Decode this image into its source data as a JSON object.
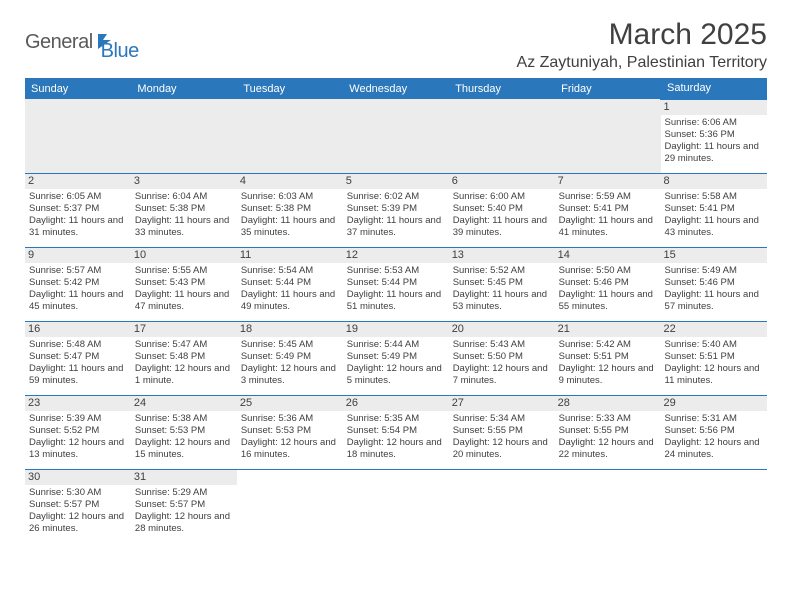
{
  "logo": {
    "main": "General",
    "sub": "Blue"
  },
  "title": "March 2025",
  "location": "Az Zaytuniyah, Palestinian Territory",
  "colors": {
    "header_bg": "#2b77bb",
    "daynum_bg": "#ececec",
    "text": "#404040",
    "white": "#ffffff"
  },
  "weekdays": [
    "Sunday",
    "Monday",
    "Tuesday",
    "Wednesday",
    "Thursday",
    "Friday",
    "Saturday"
  ],
  "weeks": [
    [
      null,
      null,
      null,
      null,
      null,
      null,
      {
        "n": "1",
        "r": "Sunrise: 6:06 AM",
        "s": "Sunset: 5:36 PM",
        "d": "Daylight: 11 hours and 29 minutes."
      }
    ],
    [
      {
        "n": "2",
        "r": "Sunrise: 6:05 AM",
        "s": "Sunset: 5:37 PM",
        "d": "Daylight: 11 hours and 31 minutes."
      },
      {
        "n": "3",
        "r": "Sunrise: 6:04 AM",
        "s": "Sunset: 5:38 PM",
        "d": "Daylight: 11 hours and 33 minutes."
      },
      {
        "n": "4",
        "r": "Sunrise: 6:03 AM",
        "s": "Sunset: 5:38 PM",
        "d": "Daylight: 11 hours and 35 minutes."
      },
      {
        "n": "5",
        "r": "Sunrise: 6:02 AM",
        "s": "Sunset: 5:39 PM",
        "d": "Daylight: 11 hours and 37 minutes."
      },
      {
        "n": "6",
        "r": "Sunrise: 6:00 AM",
        "s": "Sunset: 5:40 PM",
        "d": "Daylight: 11 hours and 39 minutes."
      },
      {
        "n": "7",
        "r": "Sunrise: 5:59 AM",
        "s": "Sunset: 5:41 PM",
        "d": "Daylight: 11 hours and 41 minutes."
      },
      {
        "n": "8",
        "r": "Sunrise: 5:58 AM",
        "s": "Sunset: 5:41 PM",
        "d": "Daylight: 11 hours and 43 minutes."
      }
    ],
    [
      {
        "n": "9",
        "r": "Sunrise: 5:57 AM",
        "s": "Sunset: 5:42 PM",
        "d": "Daylight: 11 hours and 45 minutes."
      },
      {
        "n": "10",
        "r": "Sunrise: 5:55 AM",
        "s": "Sunset: 5:43 PM",
        "d": "Daylight: 11 hours and 47 minutes."
      },
      {
        "n": "11",
        "r": "Sunrise: 5:54 AM",
        "s": "Sunset: 5:44 PM",
        "d": "Daylight: 11 hours and 49 minutes."
      },
      {
        "n": "12",
        "r": "Sunrise: 5:53 AM",
        "s": "Sunset: 5:44 PM",
        "d": "Daylight: 11 hours and 51 minutes."
      },
      {
        "n": "13",
        "r": "Sunrise: 5:52 AM",
        "s": "Sunset: 5:45 PM",
        "d": "Daylight: 11 hours and 53 minutes."
      },
      {
        "n": "14",
        "r": "Sunrise: 5:50 AM",
        "s": "Sunset: 5:46 PM",
        "d": "Daylight: 11 hours and 55 minutes."
      },
      {
        "n": "15",
        "r": "Sunrise: 5:49 AM",
        "s": "Sunset: 5:46 PM",
        "d": "Daylight: 11 hours and 57 minutes."
      }
    ],
    [
      {
        "n": "16",
        "r": "Sunrise: 5:48 AM",
        "s": "Sunset: 5:47 PM",
        "d": "Daylight: 11 hours and 59 minutes."
      },
      {
        "n": "17",
        "r": "Sunrise: 5:47 AM",
        "s": "Sunset: 5:48 PM",
        "d": "Daylight: 12 hours and 1 minute."
      },
      {
        "n": "18",
        "r": "Sunrise: 5:45 AM",
        "s": "Sunset: 5:49 PM",
        "d": "Daylight: 12 hours and 3 minutes."
      },
      {
        "n": "19",
        "r": "Sunrise: 5:44 AM",
        "s": "Sunset: 5:49 PM",
        "d": "Daylight: 12 hours and 5 minutes."
      },
      {
        "n": "20",
        "r": "Sunrise: 5:43 AM",
        "s": "Sunset: 5:50 PM",
        "d": "Daylight: 12 hours and 7 minutes."
      },
      {
        "n": "21",
        "r": "Sunrise: 5:42 AM",
        "s": "Sunset: 5:51 PM",
        "d": "Daylight: 12 hours and 9 minutes."
      },
      {
        "n": "22",
        "r": "Sunrise: 5:40 AM",
        "s": "Sunset: 5:51 PM",
        "d": "Daylight: 12 hours and 11 minutes."
      }
    ],
    [
      {
        "n": "23",
        "r": "Sunrise: 5:39 AM",
        "s": "Sunset: 5:52 PM",
        "d": "Daylight: 12 hours and 13 minutes."
      },
      {
        "n": "24",
        "r": "Sunrise: 5:38 AM",
        "s": "Sunset: 5:53 PM",
        "d": "Daylight: 12 hours and 15 minutes."
      },
      {
        "n": "25",
        "r": "Sunrise: 5:36 AM",
        "s": "Sunset: 5:53 PM",
        "d": "Daylight: 12 hours and 16 minutes."
      },
      {
        "n": "26",
        "r": "Sunrise: 5:35 AM",
        "s": "Sunset: 5:54 PM",
        "d": "Daylight: 12 hours and 18 minutes."
      },
      {
        "n": "27",
        "r": "Sunrise: 5:34 AM",
        "s": "Sunset: 5:55 PM",
        "d": "Daylight: 12 hours and 20 minutes."
      },
      {
        "n": "28",
        "r": "Sunrise: 5:33 AM",
        "s": "Sunset: 5:55 PM",
        "d": "Daylight: 12 hours and 22 minutes."
      },
      {
        "n": "29",
        "r": "Sunrise: 5:31 AM",
        "s": "Sunset: 5:56 PM",
        "d": "Daylight: 12 hours and 24 minutes."
      }
    ],
    [
      {
        "n": "30",
        "r": "Sunrise: 5:30 AM",
        "s": "Sunset: 5:57 PM",
        "d": "Daylight: 12 hours and 26 minutes."
      },
      {
        "n": "31",
        "r": "Sunrise: 5:29 AM",
        "s": "Sunset: 5:57 PM",
        "d": "Daylight: 12 hours and 28 minutes."
      },
      null,
      null,
      null,
      null,
      null
    ]
  ]
}
